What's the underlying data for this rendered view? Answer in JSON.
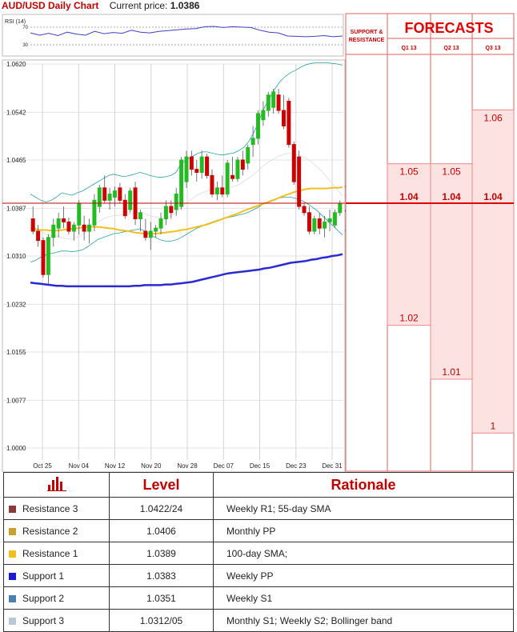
{
  "header": {
    "title": "AUD/USD Daily Chart",
    "current_price_label": "Current price:",
    "current_price": "1.0386"
  },
  "rsi": {
    "label": "RSI (14)",
    "ticks": [
      "70",
      "30"
    ],
    "values": [
      56,
      50,
      55,
      49,
      58,
      53,
      50,
      60,
      54,
      57,
      55,
      63,
      58,
      56,
      60,
      62,
      64,
      66,
      67,
      72,
      73,
      70,
      72,
      71,
      70,
      63,
      58,
      56,
      48,
      47,
      46,
      47,
      49,
      46,
      48
    ]
  },
  "chart_data": {
    "type": "candlestick",
    "title": "AUD/USD Daily Chart",
    "y_ticks": [
      "1.0620",
      "1.0542",
      "1.0465",
      "1.0387",
      "1.0310",
      "1.0232",
      "1.0155",
      "1.0077",
      "1.0000"
    ],
    "ylim": [
      1.0,
      1.062
    ],
    "x_labels": [
      "Oct 25",
      "Nov 04",
      "Nov 12",
      "Nov 20",
      "Nov 28",
      "Dec 07",
      "Dec 15",
      "Dec 23",
      "Dec 31"
    ],
    "candles": [
      [
        1.037,
        1.039,
        1.0345,
        1.035
      ],
      [
        1.035,
        1.036,
        1.0325,
        1.0335
      ],
      [
        1.0335,
        1.034,
        1.0275,
        1.028
      ],
      [
        1.028,
        1.0345,
        1.0265,
        1.034
      ],
      [
        1.034,
        1.037,
        1.0325,
        1.036
      ],
      [
        1.0355,
        1.038,
        1.034,
        1.037
      ],
      [
        1.037,
        1.039,
        1.0355,
        1.0365
      ],
      [
        1.0365,
        1.0372,
        1.0345,
        1.035
      ],
      [
        1.035,
        1.0365,
        1.0335,
        1.036
      ],
      [
        1.036,
        1.04,
        1.0345,
        1.0395
      ],
      [
        1.036,
        1.0375,
        1.0335,
        1.035
      ],
      [
        1.035,
        1.037,
        1.033,
        1.036
      ],
      [
        1.036,
        1.041,
        1.035,
        1.04
      ],
      [
        1.039,
        1.0425,
        1.038,
        1.042
      ],
      [
        1.042,
        1.044,
        1.0395,
        1.04
      ],
      [
        1.04,
        1.042,
        1.0385,
        1.041
      ],
      [
        1.0405,
        1.0422,
        1.039,
        1.0415
      ],
      [
        1.042,
        1.0428,
        1.0395,
        1.04
      ],
      [
        1.04,
        1.041,
        1.037,
        1.0375
      ],
      [
        1.0385,
        1.042,
        1.038,
        1.0415
      ],
      [
        1.042,
        1.043,
        1.036,
        1.037
      ],
      [
        1.037,
        1.0385,
        1.035,
        1.038
      ],
      [
        1.035,
        1.037,
        1.0335,
        1.034
      ],
      [
        1.034,
        1.0365,
        1.032,
        1.035
      ],
      [
        1.035,
        1.036,
        1.034,
        1.0355
      ],
      [
        1.0355,
        1.038,
        1.0345,
        1.037
      ],
      [
        1.037,
        1.04,
        1.036,
        1.039
      ],
      [
        1.039,
        1.04,
        1.037,
        1.038
      ],
      [
        1.0385,
        1.042,
        1.0375,
        1.041
      ],
      [
        1.039,
        1.047,
        1.0385,
        1.0465
      ],
      [
        1.043,
        1.048,
        1.042,
        1.047
      ],
      [
        1.047,
        1.048,
        1.044,
        1.045
      ],
      [
        1.045,
        1.0465,
        1.043,
        1.0445
      ],
      [
        1.0445,
        1.048,
        1.0435,
        1.047
      ],
      [
        1.047,
        1.0475,
        1.0435,
        1.044
      ],
      [
        1.044,
        1.045,
        1.0405,
        1.041
      ],
      [
        1.041,
        1.043,
        1.04,
        1.042
      ],
      [
        1.042,
        1.044,
        1.0405,
        1.041
      ],
      [
        1.041,
        1.0465,
        1.0405,
        1.046
      ],
      [
        1.044,
        1.047,
        1.043,
        1.0435
      ],
      [
        1.0435,
        1.047,
        1.043,
        1.0465
      ],
      [
        1.0465,
        1.048,
        1.044,
        1.045
      ],
      [
        1.046,
        1.049,
        1.045,
        1.0485
      ],
      [
        1.049,
        1.052,
        1.047,
        1.05
      ],
      [
        1.05,
        1.0545,
        1.049,
        1.054
      ],
      [
        1.053,
        1.056,
        1.052,
        1.0545
      ],
      [
        1.0545,
        1.0575,
        1.0535,
        1.057
      ],
      [
        1.055,
        1.058,
        1.054,
        1.0575
      ],
      [
        1.057,
        1.058,
        1.054,
        1.0545
      ],
      [
        1.0545,
        1.057,
        1.0515,
        1.052
      ],
      [
        1.056,
        1.0565,
        1.0485,
        1.049
      ],
      [
        1.049,
        1.0495,
        1.0425,
        1.043
      ],
      [
        1.047,
        1.048,
        1.0385,
        1.039
      ],
      [
        1.039,
        1.0395,
        1.0375,
        1.038
      ],
      [
        1.038,
        1.039,
        1.0345,
        1.035
      ],
      [
        1.035,
        1.0375,
        1.0345,
        1.037
      ],
      [
        1.037,
        1.038,
        1.0345,
        1.0355
      ],
      [
        1.0355,
        1.0375,
        1.034,
        1.0365
      ],
      [
        1.0365,
        1.0385,
        1.035,
        1.037
      ],
      [
        1.036,
        1.0385,
        1.0355,
        1.038
      ],
      [
        1.038,
        1.04,
        1.0375,
        1.0395
      ]
    ],
    "sma_100": [
      1.0267,
      1.0266,
      1.0265,
      1.0264,
      1.0263,
      1.0262,
      1.0262,
      1.0261,
      1.0261,
      1.0261,
      1.0261,
      1.0261,
      1.0261,
      1.0261,
      1.0261,
      1.0261,
      1.0261,
      1.0261,
      1.0261,
      1.0261,
      1.0262,
      1.0262,
      1.0263,
      1.0263,
      1.0263,
      1.0263,
      1.0264,
      1.0264,
      1.0265,
      1.0266,
      1.0267,
      1.0268,
      1.027,
      1.0272,
      1.0274,
      1.0276,
      1.0278,
      1.028,
      1.0282,
      1.0283,
      1.0284,
      1.0285,
      1.0286,
      1.0287,
      1.0288,
      1.029,
      1.0291,
      1.0293,
      1.0295,
      1.0297,
      1.0299,
      1.03,
      1.0301,
      1.0302,
      1.0304,
      1.0305,
      1.0307,
      1.0308,
      1.031,
      1.0311,
      1.0313
    ],
    "sma_55": [
      1.0355,
      1.0353,
      1.0352,
      1.0352,
      1.0351,
      1.0351,
      1.0352,
      1.0353,
      1.0354,
      1.0355,
      1.0356,
      1.0357,
      1.0357,
      1.0357,
      1.0356,
      1.0355,
      1.0354,
      1.0352,
      1.0351,
      1.035,
      1.0348,
      1.0347,
      1.0346,
      1.0346,
      1.0346,
      1.0347,
      1.0348,
      1.0349,
      1.035,
      1.0352,
      1.0353,
      1.0355,
      1.0357,
      1.0359,
      1.0361,
      1.0364,
      1.0367,
      1.037,
      1.0373,
      1.0376,
      1.0379,
      1.0383,
      1.0386,
      1.0389,
      1.0392,
      1.0395,
      1.0398,
      1.0401,
      1.0405,
      1.0408,
      1.0411,
      1.0414,
      1.0416,
      1.0418,
      1.0419,
      1.0419,
      1.0419,
      1.0419,
      1.042,
      1.042,
      1.0421
    ],
    "bb_upper": [
      1.041,
      1.0405,
      1.04,
      1.0397,
      1.04,
      1.0405,
      1.0412,
      1.041,
      1.0408,
      1.0412,
      1.0415,
      1.042,
      1.0425,
      1.043,
      1.0435,
      1.044,
      1.0442,
      1.044,
      1.0438,
      1.044,
      1.0442,
      1.0445,
      1.0443,
      1.044,
      1.0438,
      1.0437,
      1.0438,
      1.044,
      1.0445,
      1.046,
      1.0465,
      1.047,
      1.0475,
      1.0478,
      1.0478,
      1.0476,
      1.0474,
      1.0473,
      1.0475,
      1.0476,
      1.048,
      1.0485,
      1.0495,
      1.051,
      1.053,
      1.055,
      1.0565,
      1.058,
      1.0592,
      1.06,
      1.0606,
      1.061,
      1.0615,
      1.0619,
      1.0621,
      1.0622,
      1.0622,
      1.0622,
      1.0621,
      1.062,
      1.0618
    ],
    "bb_mid": [
      1.036,
      1.0355,
      1.035,
      1.0345,
      1.0343,
      1.0342,
      1.034,
      1.0338,
      1.0337,
      1.034,
      1.0345,
      1.0352,
      1.0358,
      1.0365,
      1.037,
      1.0373,
      1.0375,
      1.0376,
      1.0377,
      1.0378,
      1.0379,
      1.038,
      1.0378,
      1.0375,
      1.0373,
      1.0372,
      1.0373,
      1.0375,
      1.038,
      1.0388,
      1.0395,
      1.0402,
      1.0408,
      1.0412,
      1.0415,
      1.0417,
      1.0418,
      1.0419,
      1.042,
      1.0422,
      1.0425,
      1.043,
      1.0436,
      1.0442,
      1.045,
      1.0457,
      1.0463,
      1.0468,
      1.0472,
      1.0475,
      1.0476,
      1.0474,
      1.0472,
      1.0468,
      1.0462,
      1.0455,
      1.0447,
      1.0437,
      1.0427,
      1.0417,
      1.0407
    ],
    "bb_lower": [
      1.03,
      1.0303,
      1.0308,
      1.0312,
      1.0314,
      1.0316,
      1.0318,
      1.0318,
      1.0317,
      1.0318,
      1.032,
      1.0325,
      1.0331,
      1.0337,
      1.034,
      1.0343,
      1.0346,
      1.0347,
      1.0349,
      1.0351,
      1.0352,
      1.0354,
      1.035,
      1.0345,
      1.034,
      1.0336,
      1.0334,
      1.0334,
      1.0336,
      1.034,
      1.0345,
      1.035,
      1.0355,
      1.0358,
      1.0362,
      1.0365,
      1.0368,
      1.037,
      1.0372,
      1.0374,
      1.0376,
      1.0378,
      1.0381,
      1.0385,
      1.039,
      1.0395,
      1.0399,
      1.0402,
      1.0404,
      1.0405,
      1.0405,
      1.0403,
      1.04,
      1.0396,
      1.039,
      1.0384,
      1.0376,
      1.0368,
      1.036,
      1.0352,
      1.0344
    ],
    "level_tags": [
      {
        "value": "1.0422",
        "color": "#8b2c3c"
      },
      {
        "value": "1.0406",
        "color": "#c8a030"
      },
      {
        "value": "1.0389",
        "color": "#f0c020"
      },
      {
        "value": "1.0383",
        "color": "#1a1aaa"
      },
      {
        "value": "1.0351",
        "color": "#4a80b0"
      },
      {
        "value": "1.0312",
        "color": "#b0c8d8"
      }
    ]
  },
  "forecasts": {
    "title": "FORECASTS",
    "sr_label_line1": "SUPPORT &",
    "sr_label_line2": "RESISTANCE",
    "columns": [
      {
        "label": "Q1 13",
        "high": "1.05",
        "mid": "1.04",
        "low": "1.02",
        "high_value": 1.05,
        "low_value": 1.02
      },
      {
        "label": "Q2 13",
        "high": "1.05",
        "mid": "1.04",
        "low": "1.01",
        "high_value": 1.05,
        "low_value": 1.01
      },
      {
        "label": "Q3 13",
        "high": "1.06",
        "mid": "1.04",
        "low": "1",
        "high_value": 1.06,
        "low_value": 1.0
      }
    ],
    "current_value": 1.04
  },
  "levels_table": {
    "header_level": "Level",
    "header_rationale": "Rationale",
    "rows": [
      {
        "name": "Resistance 3",
        "level": "1.0422/24",
        "rationale": "Weekly R1; 55-day SMA",
        "color": "#8b3a3a"
      },
      {
        "name": "Resistance 2",
        "level": "1.0406",
        "rationale": "Monthly PP",
        "color": "#c8a030"
      },
      {
        "name": "Resistance 1",
        "level": "1.0389",
        "rationale": "100-day SMA;",
        "color": "#f0c020"
      },
      {
        "name": "Support 1",
        "level": "1.0383",
        "rationale": "Weekly PP",
        "color": "#1a1ad0"
      },
      {
        "name": "Support 2",
        "level": "1.0351",
        "rationale": "Weekly S1",
        "color": "#4a80b0"
      },
      {
        "name": "Support 3",
        "level": "1.0312/05",
        "rationale": "Monthly S1; Weekly S2; Bollinger band",
        "color": "#b8c8d8"
      }
    ]
  },
  "colors": {
    "bull": "#22bb22",
    "bear": "#cc0000",
    "sma100": "#2a2ad0",
    "sma55": "#f0c020",
    "bollinger": "#2aa0a0",
    "accent": "#c00000"
  }
}
